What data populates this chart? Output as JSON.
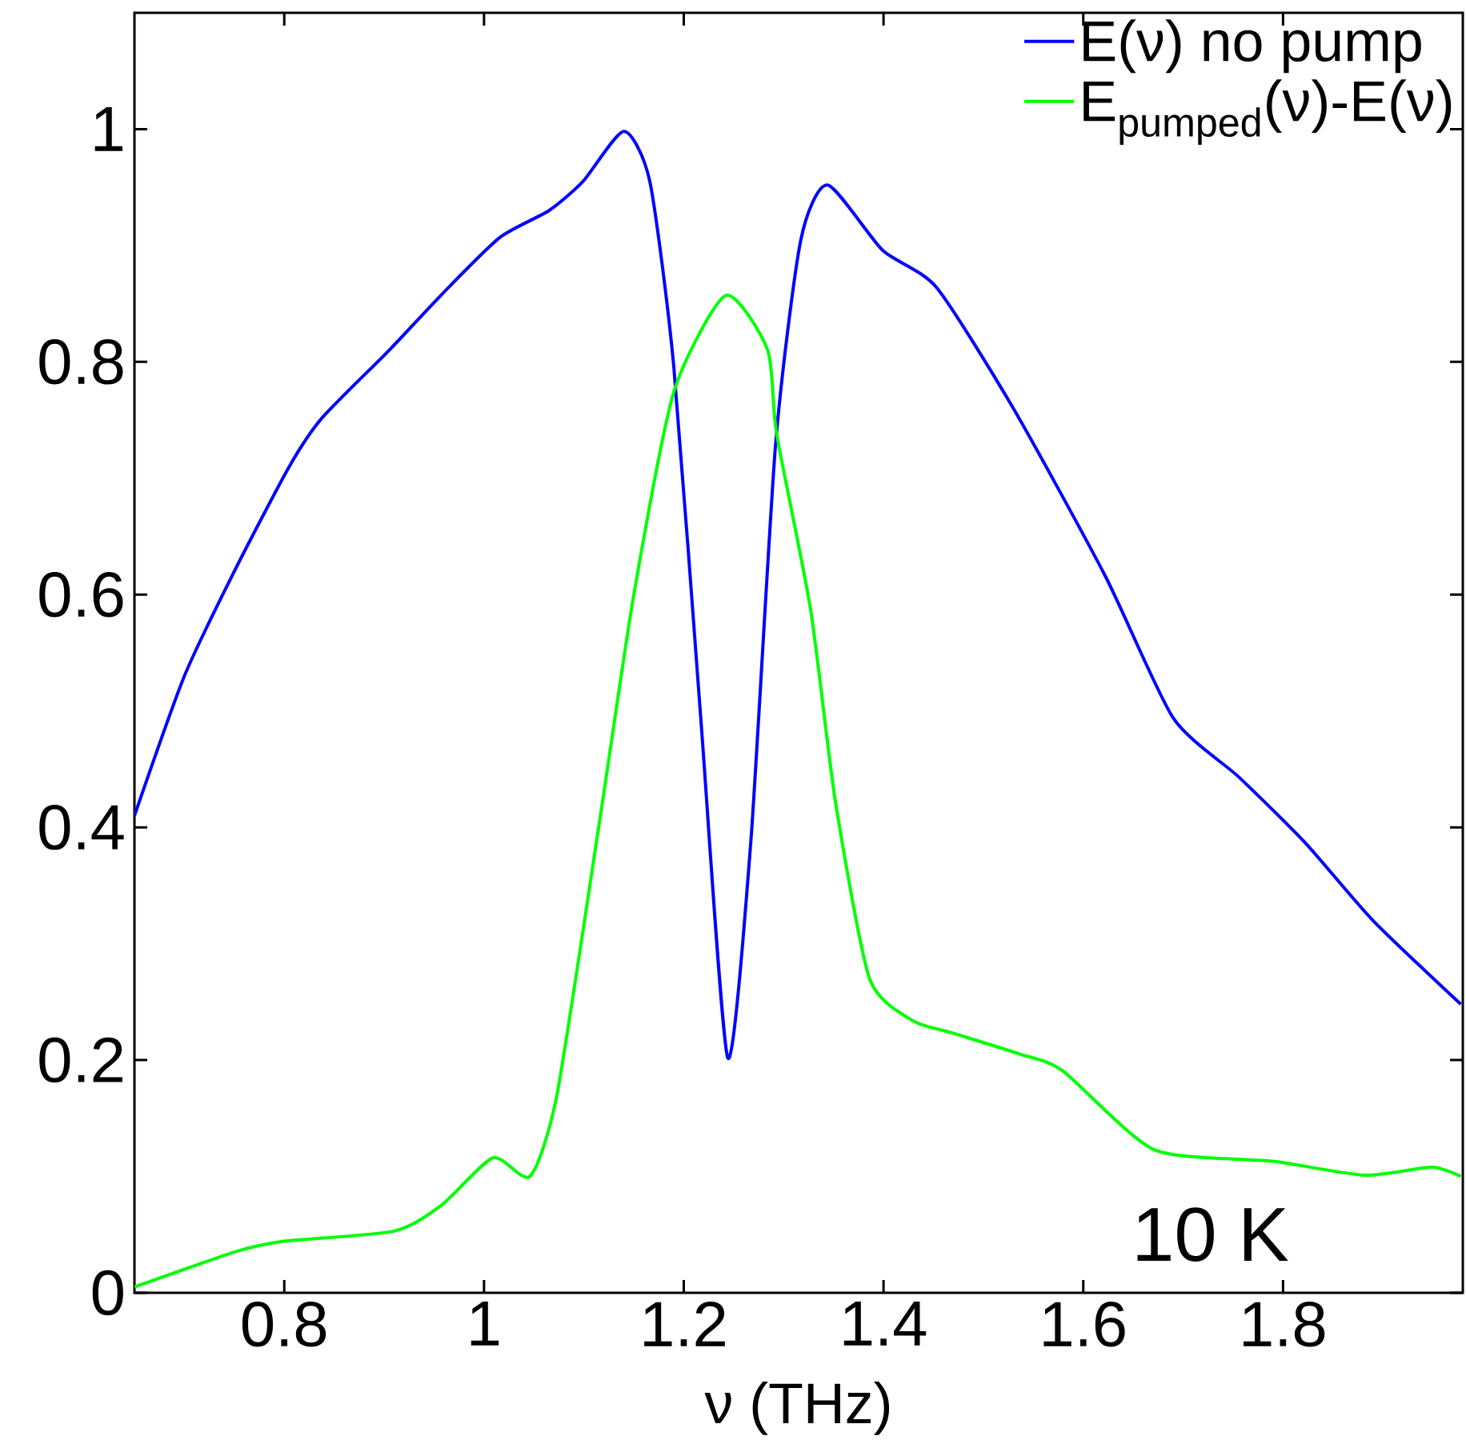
{
  "chart_data": {
    "type": "line",
    "xlabel": "ν (THz)",
    "annotations": [
      "10 K"
    ],
    "xlim": [
      0.65,
      1.98
    ],
    "ylim": [
      0,
      1.1
    ],
    "xticks": [
      0.8,
      1,
      1.2,
      1.4,
      1.6,
      1.8
    ],
    "yticks": [
      0,
      0.2,
      0.4,
      0.6,
      0.8,
      1
    ],
    "grid": false,
    "legend": "top right",
    "marker": "none",
    "line_style": "solid",
    "series": [
      {
        "name": "E(ν) no pump",
        "color": "#0000ff",
        "x": [
          0.65,
          0.7,
          0.75,
          0.805,
          0.838,
          0.905,
          0.96,
          1.016,
          1.065,
          1.099,
          1.14,
          1.166,
          1.19,
          1.217,
          1.244,
          1.267,
          1.292,
          1.317,
          1.344,
          1.399,
          1.453,
          1.53,
          1.622,
          1.69,
          1.756,
          1.823,
          1.89,
          1.978
        ],
        "values": [
          0.41,
          0.53,
          0.62,
          0.71,
          0.752,
          0.81,
          0.86,
          0.907,
          0.93,
          0.955,
          0.998,
          0.955,
          0.796,
          0.494,
          0.202,
          0.386,
          0.73,
          0.904,
          0.952,
          0.896,
          0.864,
          0.76,
          0.616,
          0.494,
          0.443,
          0.386,
          0.32,
          0.248
        ]
      },
      {
        "name": "E$_{pumped}$(ν)-E(ν)",
        "color": "#00ff00",
        "x": [
          0.65,
          0.75,
          0.797,
          0.91,
          0.957,
          1.009,
          1.046,
          1.073,
          1.116,
          1.15,
          1.19,
          1.242,
          1.284,
          1.293,
          1.327,
          1.352,
          1.386,
          1.429,
          1.47,
          1.537,
          1.579,
          1.671,
          1.79,
          1.882,
          1.949,
          1.978
        ],
        "values": [
          0.005,
          0.035,
          0.044,
          0.053,
          0.075,
          0.116,
          0.1,
          0.17,
          0.407,
          0.6,
          0.774,
          0.857,
          0.81,
          0.738,
          0.587,
          0.421,
          0.27,
          0.234,
          0.223,
          0.205,
          0.191,
          0.123,
          0.113,
          0.101,
          0.108,
          0.1
        ]
      }
    ]
  }
}
